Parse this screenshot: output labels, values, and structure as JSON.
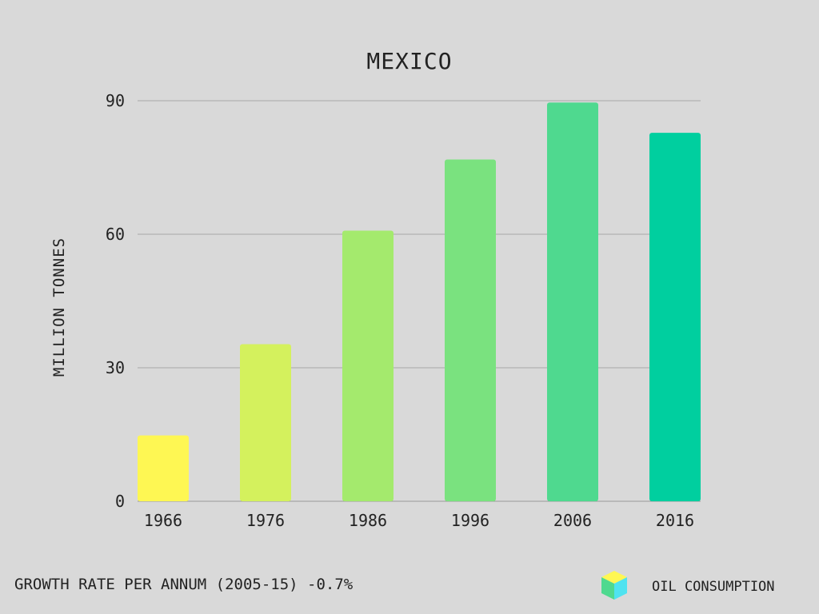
{
  "chart_data": {
    "type": "bar",
    "title": "MEXICO",
    "xlabel": "",
    "ylabel": "MILLION TONNES",
    "ylim": [
      0,
      90
    ],
    "yticks": [
      0,
      30,
      60,
      90
    ],
    "categories": [
      "1966",
      "1976",
      "1986",
      "1996",
      "2006",
      "2016"
    ],
    "values": [
      14.8,
      35.3,
      60.8,
      76.8,
      89.6,
      82.8
    ],
    "bar_colors": [
      "#fef753",
      "#d4f15d",
      "#a4ea6d",
      "#7ae27f",
      "#4fd98f",
      "#00cf9f"
    ],
    "grid": true,
    "grid_color": "#a6a6a6",
    "footer": "GROWTH RATE PER ANNUM (2005-15) -0.7%",
    "legend": {
      "label": "OIL CONSUMPTION",
      "icon": "cube-icon",
      "placement": "bottom-right",
      "colors": [
        "#fef753",
        "#4fd98f",
        "#4fe3f0"
      ]
    }
  }
}
